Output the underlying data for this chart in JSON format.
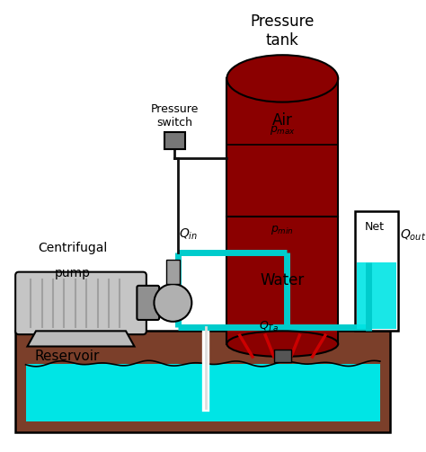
{
  "bg_color": "#ffffff",
  "reservoir_color": "#7B3F2A",
  "water_color": "#00E5E5",
  "tank_body_color": "#8B0000",
  "tank_water_color": "#6B0000",
  "pipe_color": "#00CCCC",
  "pipe_lw": 5,
  "black_pipe_color": "#111111",
  "black_pipe_lw": 2,
  "pump_color": "#C0C0C0",
  "pump_dark": "#909090",
  "switch_color": "#707070",
  "leg_color": "#CC0000",
  "label_pressure_switch": "Pressure\nswitch",
  "label_centrifugal_1": "Centrifugal",
  "label_centrifugal_2": "pump",
  "label_reservoir": "Reservoir",
  "label_air": "Air",
  "label_water": "Water",
  "label_pmax": "$p_{max}$",
  "label_pmin": "$p_{min}$",
  "label_qin": "$Q_{in}$",
  "label_qout": "$Q_{out}$",
  "label_qta": "$Q_{Ta}$",
  "label_net": "Net",
  "label_tank_title": "Pressure\ntank"
}
